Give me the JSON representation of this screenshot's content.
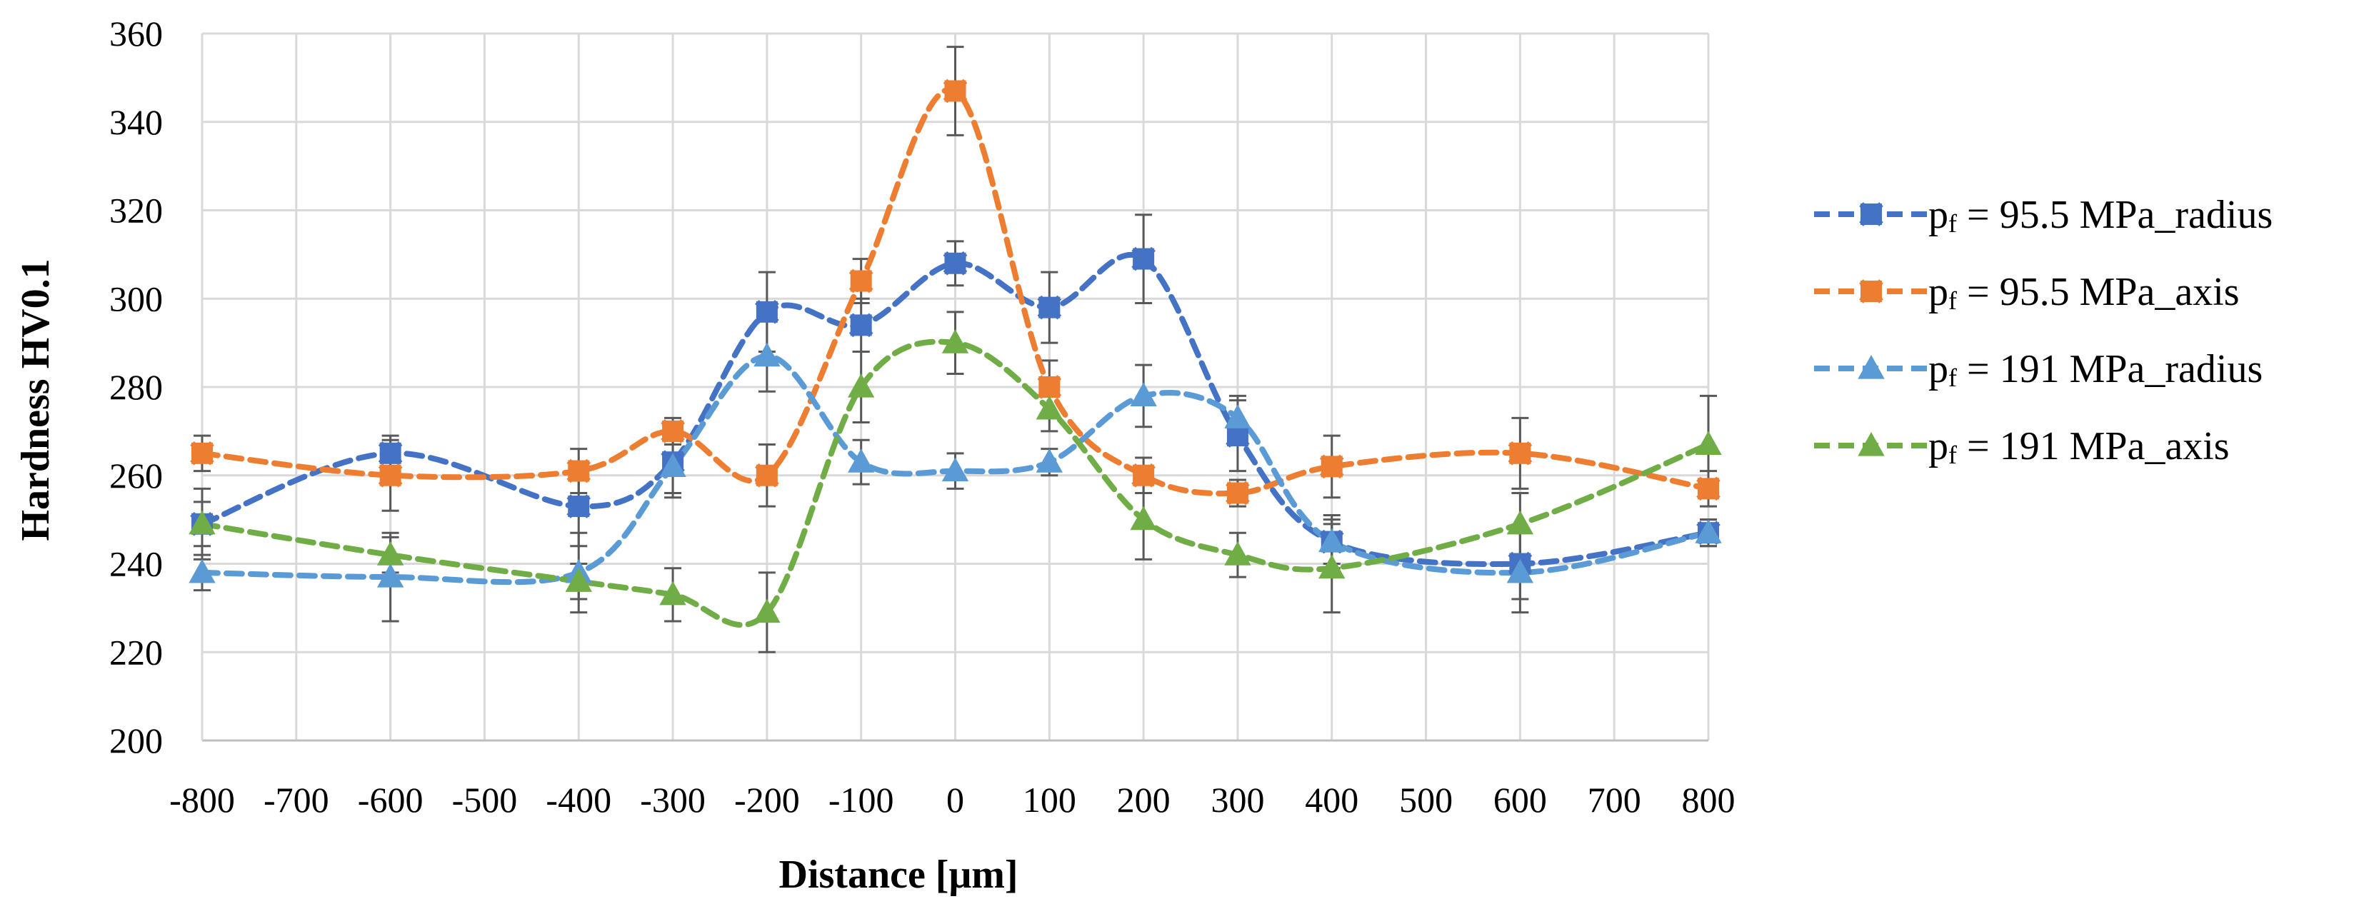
{
  "chart_data": {
    "type": "line",
    "title": "",
    "xlabel": "Distance [μm]",
    "ylabel": "Hardness HV0.1",
    "xlim": [
      -800,
      800
    ],
    "ylim": [
      200,
      360
    ],
    "xticks": [
      -800,
      -700,
      -600,
      -500,
      -400,
      -300,
      -200,
      -100,
      0,
      100,
      200,
      300,
      400,
      500,
      600,
      700,
      800
    ],
    "yticks": [
      200,
      220,
      240,
      260,
      280,
      300,
      320,
      340,
      360
    ],
    "grid": true,
    "legend_position": "right",
    "series": [
      {
        "name": "pf = 95.5 MPa_radius",
        "legend_main": "p",
        "legend_sub": "f",
        "legend_rest": " = 95.5 MPa_radius",
        "color": "#4472C4",
        "marker": "x-square",
        "x": [
          -800,
          -600,
          -400,
          -300,
          -200,
          -100,
          0,
          100,
          200,
          300,
          400,
          600,
          800
        ],
        "y": [
          249,
          265,
          253,
          263,
          297,
          294,
          308,
          298,
          309,
          269,
          245,
          240,
          247
        ],
        "err": [
          5,
          4,
          9,
          7,
          9,
          6,
          5,
          8,
          10,
          8,
          6,
          8,
          3
        ]
      },
      {
        "name": "pf = 95.5 MPa_axis",
        "legend_main": "p",
        "legend_sub": "f",
        "legend_rest": " = 95.5 MPa_axis",
        "color": "#ED7D31",
        "marker": "x-square",
        "x": [
          -800,
          -600,
          -400,
          -300,
          -200,
          -100,
          0,
          100,
          200,
          300,
          400,
          600,
          800
        ],
        "y": [
          265,
          260,
          261,
          270,
          260,
          304,
          347,
          280,
          260,
          256,
          262,
          265,
          257
        ],
        "err": [
          4,
          8,
          5,
          3,
          7,
          5,
          10,
          6,
          4,
          3,
          7,
          8,
          4
        ]
      },
      {
        "name": "pf = 191 MPa_radius",
        "legend_main": "p",
        "legend_sub": "f",
        "legend_rest": " = 191 MPa_radius",
        "color": "#5B9BD5",
        "marker": "triangle",
        "x": [
          -800,
          -600,
          -400,
          -300,
          -200,
          -100,
          0,
          100,
          200,
          300,
          400,
          600,
          800
        ],
        "y": [
          238,
          237,
          238,
          262,
          287,
          263,
          261,
          263,
          278,
          273,
          245,
          238,
          247
        ],
        "err": [
          4,
          10,
          9,
          7,
          8,
          5,
          4,
          3,
          7,
          5,
          5,
          9,
          3
        ]
      },
      {
        "name": "pf = 191 MPa_axis",
        "legend_main": "p",
        "legend_sub": "f",
        "legend_rest": " = 191 MPa_axis",
        "color": "#70AD47",
        "marker": "triangle",
        "x": [
          -800,
          -600,
          -400,
          -300,
          -200,
          -100,
          0,
          100,
          200,
          300,
          400,
          600,
          800
        ],
        "y": [
          249,
          242,
          236,
          233,
          229,
          280,
          290,
          275,
          250,
          242,
          239,
          249,
          267
        ],
        "err": [
          8,
          4,
          4,
          6,
          9,
          8,
          7,
          5,
          9,
          5,
          10,
          7,
          11
        ]
      }
    ]
  }
}
